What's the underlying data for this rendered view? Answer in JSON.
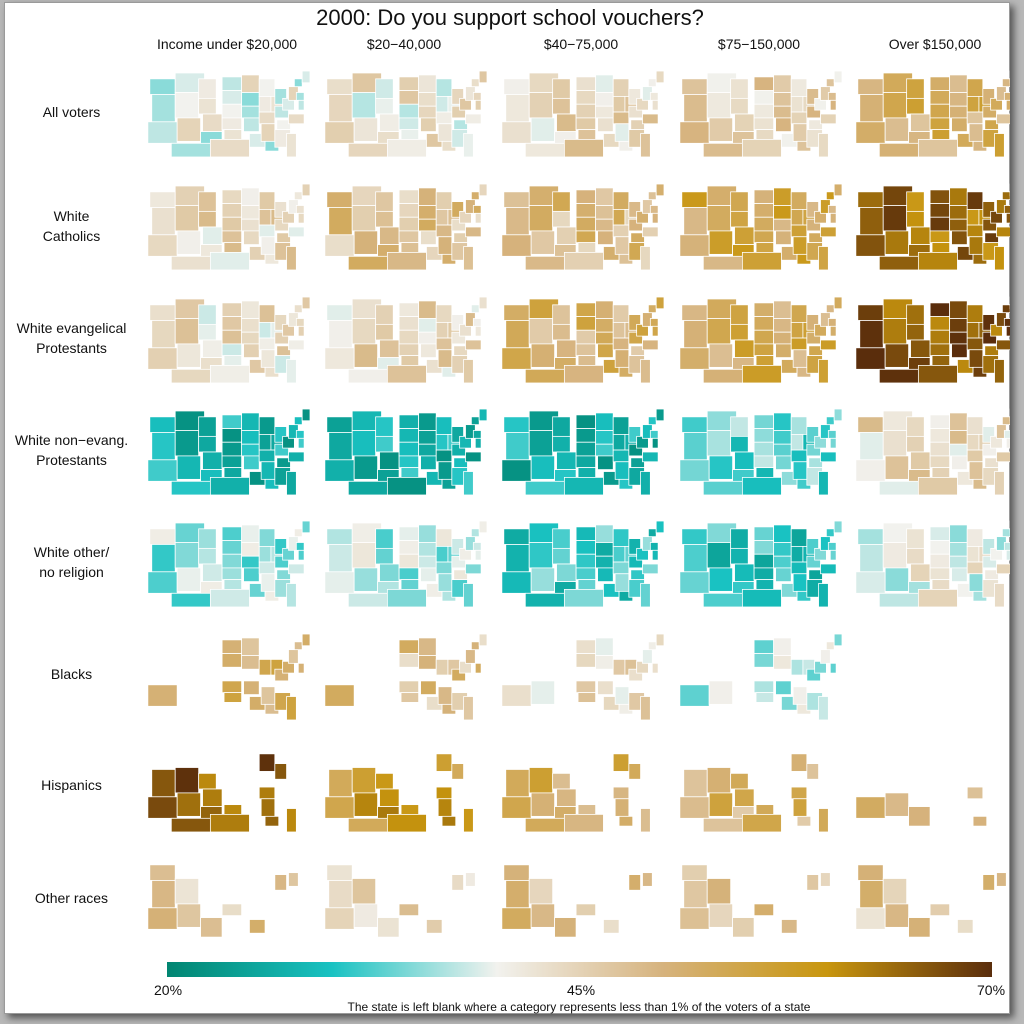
{
  "title": "2000: Do you support school vouchers?",
  "columns": [
    "Income under $20,000",
    "$20−40,000",
    "$40−75,000",
    "$75−150,000",
    "Over $150,000"
  ],
  "rows": [
    {
      "label": [
        "All voters"
      ]
    },
    {
      "label": [
        "White",
        "Catholics"
      ]
    },
    {
      "label": [
        "White evangelical",
        "Protestants"
      ]
    },
    {
      "label": [
        "White non−evang.",
        "Protestants"
      ]
    },
    {
      "label": [
        "White other/",
        "no religion"
      ]
    },
    {
      "label": [
        "Blacks"
      ]
    },
    {
      "label": [
        "Hispanics"
      ]
    },
    {
      "label": [
        "Other races"
      ]
    }
  ],
  "legend": {
    "min_label": "20%",
    "mid_label": "45%",
    "max_label": "70%",
    "min": 20,
    "mid": 45,
    "max": 70,
    "stops": [
      "#018571",
      "#19c2c2",
      "#f2f2ee",
      "#d6b37e",
      "#c8960e",
      "#5a2d0c"
    ]
  },
  "note": "The state is left blank where a category represents less than 1% of the voters of a state",
  "chart_data": {
    "type": "heatmap",
    "title": "2000: Do you support school vouchers?",
    "unit": "% support",
    "x_categories": [
      "Income under $20,000",
      "$20−40,000",
      "$40−75,000",
      "$75−150,000",
      "Over $150,000"
    ],
    "y_categories": [
      "All voters",
      "White Catholics",
      "White evangelical Protestants",
      "White non−evang. Protestants",
      "White other/ no religion",
      "Blacks",
      "Hispanics",
      "Other races"
    ],
    "typical_values": [
      [
        40,
        42,
        44,
        45,
        52
      ],
      [
        44,
        48,
        49,
        54,
        64
      ],
      [
        43,
        44,
        51,
        53,
        66
      ],
      [
        27,
        27,
        27,
        33,
        44
      ],
      [
        36,
        37,
        31,
        30,
        40
      ],
      [
        52,
        48,
        43,
        38,
        null
      ],
      [
        66,
        58,
        52,
        51,
        49
      ],
      [
        47,
        46,
        48,
        48,
        47
      ]
    ]
  }
}
